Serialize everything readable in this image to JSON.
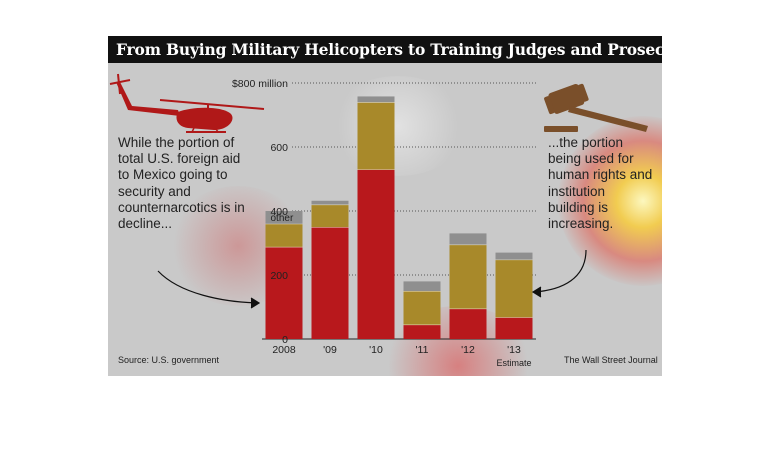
{
  "title": "From Buying Military Helicopters to Training Judges and Prosecutors",
  "left_note": "While the portion of total U.S. foreign aid to Mexico going to security and counternarcotics is in decline...",
  "right_note": "...the portion being used for human rights and institution building is increasing.",
  "source": "Source: U.S. government",
  "credit": "The Wall Street Journal",
  "estimate_label": "Estimate",
  "other_label": "other",
  "icons": {
    "left": "helicopter-icon",
    "right": "gavel-icon"
  },
  "colors": {
    "security": "#b8181c",
    "institution": "#a8892a",
    "other": "#8f8f8f",
    "icon": "#b01818",
    "gavel": "#7a4f2a"
  },
  "chart_data": {
    "type": "bar",
    "stacked": true,
    "categories": [
      "2008",
      "'09",
      "'10",
      "'11",
      "'12",
      "'13"
    ],
    "series": [
      {
        "name": "",
        "values": [
          288,
          350,
          530,
          45,
          95,
          68
        ]
      },
      {
        "name": "",
        "values": [
          72,
          70,
          210,
          105,
          200,
          180
        ]
      },
      {
        "name": "other",
        "values": [
          40,
          12,
          18,
          30,
          35,
          22
        ]
      }
    ],
    "ylim": [
      0,
      800
    ],
    "yticks": [
      "0",
      "200",
      "400",
      "600",
      "$800 million"
    ],
    "ytick_values": [
      0,
      200,
      400,
      600,
      800
    ],
    "grid": true
  }
}
